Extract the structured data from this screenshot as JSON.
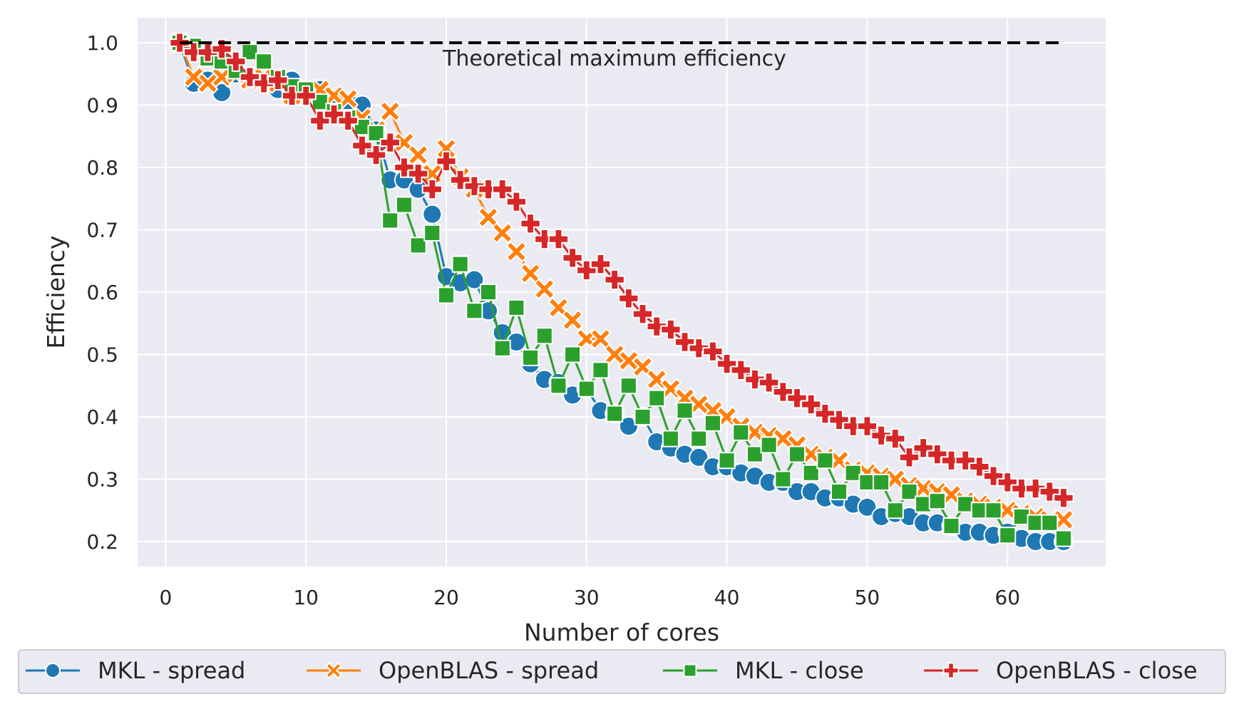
{
  "chart_data": {
    "type": "line",
    "title": "",
    "xlabel": "Number of cores",
    "ylabel": "Efficiency",
    "xlim": [
      -2,
      67
    ],
    "ylim": [
      0.16,
      1.04
    ],
    "xticks": [
      0,
      10,
      20,
      30,
      40,
      50,
      60
    ],
    "yticks": [
      0.2,
      0.3,
      0.4,
      0.5,
      0.6,
      0.7,
      0.8,
      0.9,
      1.0
    ],
    "grid": true,
    "legend_placement": "bottom",
    "annotation": {
      "text": "Theoretical maximum efficiency",
      "line_y": 1.0,
      "line_x": [
        1,
        64
      ]
    },
    "x": [
      1,
      2,
      3,
      4,
      5,
      6,
      7,
      8,
      9,
      10,
      11,
      12,
      13,
      14,
      15,
      16,
      17,
      18,
      19,
      20,
      21,
      22,
      23,
      24,
      25,
      26,
      27,
      28,
      29,
      30,
      31,
      32,
      33,
      34,
      35,
      36,
      37,
      38,
      39,
      40,
      41,
      42,
      43,
      44,
      45,
      46,
      47,
      48,
      49,
      50,
      51,
      52,
      53,
      54,
      55,
      56,
      57,
      58,
      59,
      60,
      61,
      62,
      63,
      64
    ],
    "series": [
      {
        "name": "MKL - spread",
        "color": "#1f77b4",
        "marker": "circle",
        "values": [
          1.0,
          0.935,
          0.94,
          0.92,
          0.95,
          0.945,
          0.94,
          0.925,
          0.94,
          0.925,
          0.925,
          0.91,
          0.905,
          0.9,
          0.86,
          0.78,
          0.78,
          0.765,
          0.725,
          0.625,
          0.615,
          0.62,
          0.57,
          0.535,
          0.52,
          0.485,
          0.46,
          0.455,
          0.435,
          0.445,
          0.41,
          0.405,
          0.385,
          0.4,
          0.36,
          0.35,
          0.34,
          0.335,
          0.32,
          0.32,
          0.31,
          0.305,
          0.295,
          0.295,
          0.28,
          0.28,
          0.27,
          0.27,
          0.26,
          0.255,
          0.24,
          0.245,
          0.24,
          0.23,
          0.23,
          0.225,
          0.215,
          0.215,
          0.21,
          0.215,
          0.205,
          0.2,
          0.2,
          0.2
        ]
      },
      {
        "name": "OpenBLAS - spread",
        "color": "#ff7f0e",
        "marker": "x",
        "values": [
          1.0,
          0.945,
          0.935,
          0.945,
          0.95,
          0.94,
          0.945,
          0.935,
          0.915,
          0.925,
          0.925,
          0.915,
          0.91,
          0.88,
          0.86,
          0.89,
          0.84,
          0.82,
          0.79,
          0.83,
          0.785,
          0.765,
          0.72,
          0.695,
          0.665,
          0.63,
          0.605,
          0.575,
          0.555,
          0.525,
          0.525,
          0.5,
          0.49,
          0.48,
          0.46,
          0.445,
          0.43,
          0.42,
          0.41,
          0.4,
          0.385,
          0.375,
          0.37,
          0.365,
          0.355,
          0.34,
          0.335,
          0.33,
          0.315,
          0.31,
          0.305,
          0.3,
          0.29,
          0.285,
          0.28,
          0.275,
          0.265,
          0.26,
          0.255,
          0.25,
          0.245,
          0.24,
          0.235,
          0.235
        ]
      },
      {
        "name": "MKL - close",
        "color": "#2ca02c",
        "marker": "square",
        "values": [
          1.0,
          0.995,
          0.975,
          0.97,
          0.955,
          0.985,
          0.97,
          0.945,
          0.93,
          0.925,
          0.905,
          0.89,
          0.88,
          0.865,
          0.855,
          0.715,
          0.74,
          0.675,
          0.695,
          0.595,
          0.645,
          0.57,
          0.6,
          0.51,
          0.575,
          0.495,
          0.53,
          0.45,
          0.5,
          0.445,
          0.475,
          0.405,
          0.45,
          0.4,
          0.43,
          0.365,
          0.41,
          0.365,
          0.39,
          0.33,
          0.375,
          0.34,
          0.355,
          0.3,
          0.34,
          0.31,
          0.33,
          0.28,
          0.31,
          0.295,
          0.295,
          0.25,
          0.28,
          0.26,
          0.265,
          0.225,
          0.26,
          0.25,
          0.25,
          0.21,
          0.24,
          0.23,
          0.23,
          0.205
        ]
      },
      {
        "name": "OpenBLAS - close",
        "color": "#d62728",
        "marker": "plus",
        "values": [
          1.0,
          0.985,
          0.985,
          0.99,
          0.97,
          0.945,
          0.935,
          0.94,
          0.915,
          0.915,
          0.875,
          0.885,
          0.875,
          0.835,
          0.82,
          0.84,
          0.8,
          0.79,
          0.765,
          0.81,
          0.78,
          0.77,
          0.765,
          0.765,
          0.745,
          0.71,
          0.685,
          0.685,
          0.655,
          0.635,
          0.645,
          0.62,
          0.59,
          0.565,
          0.545,
          0.54,
          0.52,
          0.51,
          0.505,
          0.485,
          0.475,
          0.46,
          0.455,
          0.44,
          0.43,
          0.42,
          0.405,
          0.395,
          0.385,
          0.385,
          0.37,
          0.365,
          0.335,
          0.35,
          0.34,
          0.33,
          0.33,
          0.32,
          0.305,
          0.295,
          0.285,
          0.285,
          0.28,
          0.27
        ]
      }
    ]
  }
}
